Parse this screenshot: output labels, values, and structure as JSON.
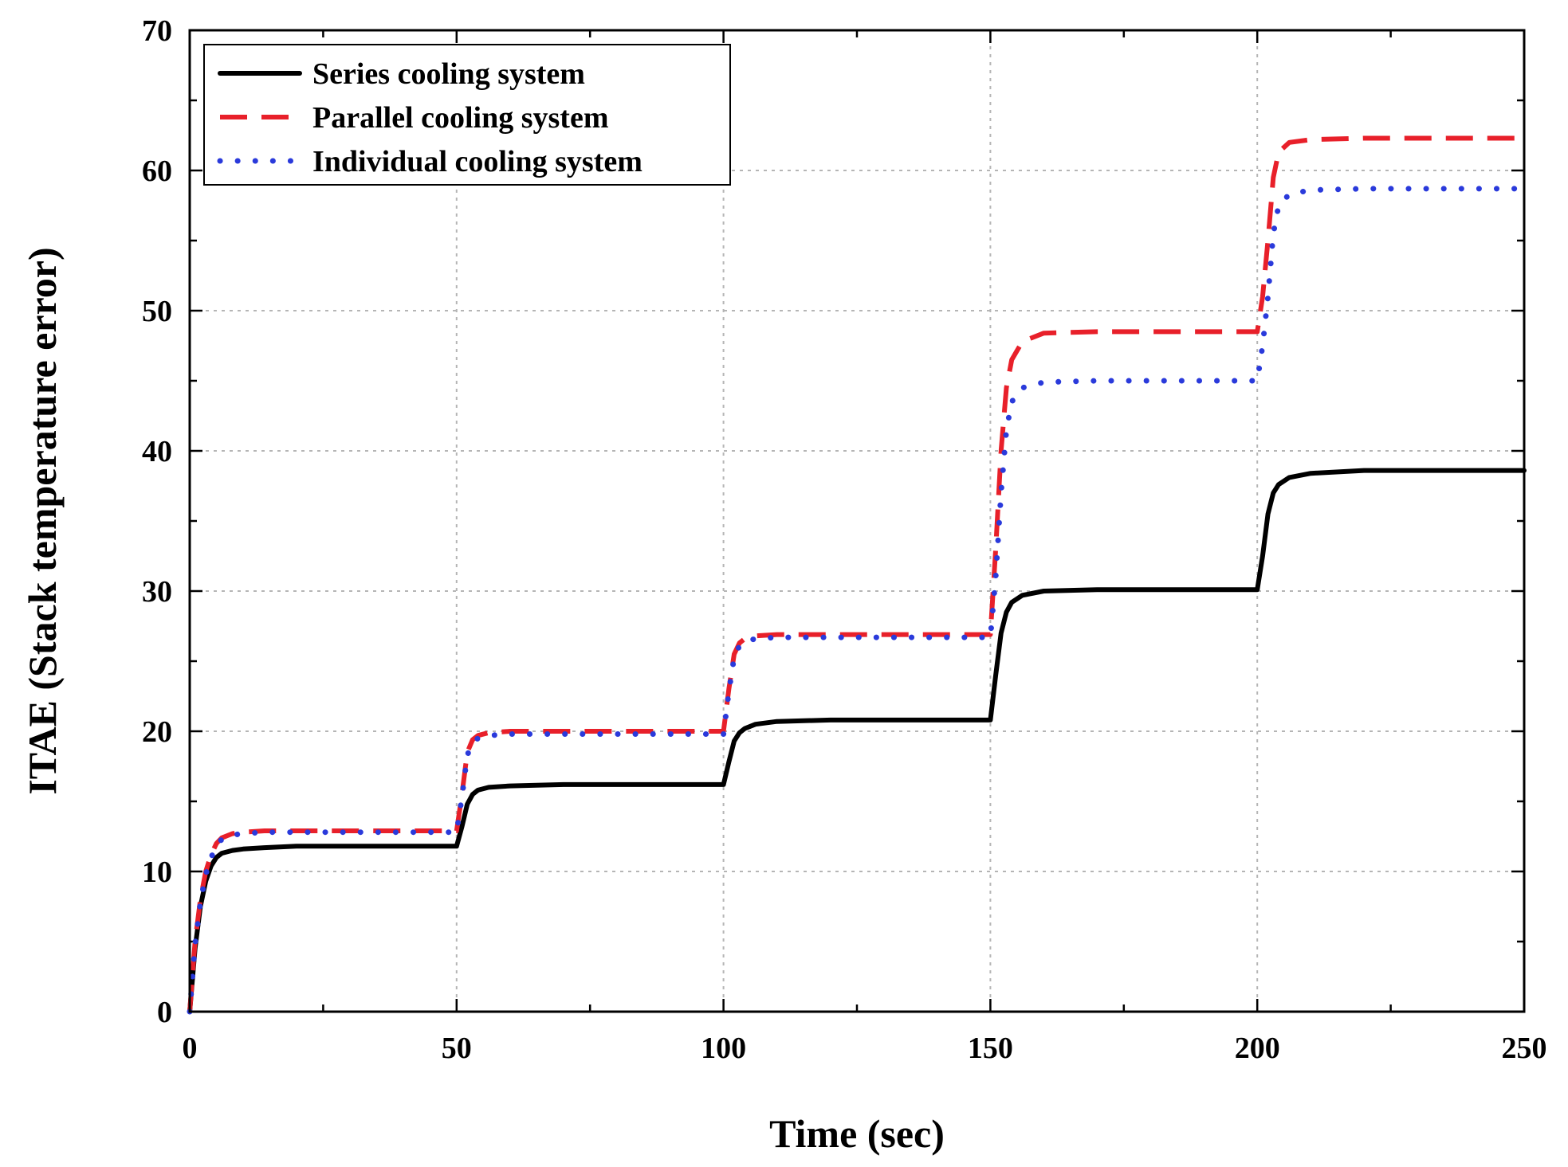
{
  "chart_data": {
    "type": "line",
    "title": "",
    "xlabel": "Time (sec)",
    "ylabel": "ITAE (Stack temperature error)",
    "xlim": [
      0,
      250
    ],
    "ylim": [
      0,
      70
    ],
    "xticks": [
      0,
      50,
      100,
      150,
      200,
      250
    ],
    "yticks": [
      0,
      10,
      20,
      30,
      40,
      50,
      60,
      70
    ],
    "grid": true,
    "legend_position": "top-left",
    "series": [
      {
        "name": "Series cooling system",
        "style": "solid",
        "color": "#000000",
        "x": [
          0,
          1,
          2,
          3,
          4,
          5,
          6,
          8,
          10,
          14,
          20,
          30,
          40,
          50,
          51,
          52,
          53,
          54,
          56,
          60,
          70,
          80,
          90,
          100,
          101,
          102,
          103,
          104,
          106,
          110,
          120,
          130,
          140,
          150,
          151,
          152,
          153,
          154,
          156,
          160,
          170,
          180,
          190,
          200,
          201,
          202,
          203,
          204,
          206,
          210,
          220,
          230,
          240,
          250
        ],
        "y": [
          0,
          4.5,
          7.5,
          9.3,
          10.4,
          11.0,
          11.3,
          11.5,
          11.6,
          11.7,
          11.8,
          11.8,
          11.8,
          11.8,
          13.2,
          14.8,
          15.5,
          15.8,
          16.0,
          16.1,
          16.2,
          16.2,
          16.2,
          16.2,
          17.8,
          19.3,
          19.9,
          20.2,
          20.5,
          20.7,
          20.8,
          20.8,
          20.8,
          20.8,
          24.0,
          27.0,
          28.5,
          29.2,
          29.7,
          30.0,
          30.1,
          30.1,
          30.1,
          30.1,
          32.5,
          35.5,
          37.0,
          37.6,
          38.1,
          38.4,
          38.6,
          38.6,
          38.6,
          38.6
        ]
      },
      {
        "name": "Parallel cooling system",
        "style": "dashed",
        "color": "#e8202a",
        "x": [
          0,
          1,
          2,
          3,
          4,
          5,
          6,
          8,
          10,
          14,
          20,
          30,
          40,
          50,
          51,
          52,
          53,
          54,
          56,
          60,
          70,
          80,
          90,
          100,
          101,
          102,
          103,
          104,
          106,
          110,
          120,
          130,
          140,
          150,
          151,
          152,
          153,
          154,
          156,
          160,
          170,
          180,
          190,
          200,
          201,
          202,
          203,
          204,
          206,
          210,
          220,
          230,
          240,
          250
        ],
        "y": [
          0,
          5.0,
          8.0,
          10.0,
          11.2,
          12.0,
          12.4,
          12.7,
          12.8,
          12.9,
          12.9,
          12.9,
          12.9,
          12.9,
          15.5,
          18.5,
          19.4,
          19.7,
          19.9,
          20.0,
          20.0,
          20.0,
          20.0,
          20.0,
          23.0,
          25.5,
          26.3,
          26.6,
          26.8,
          26.9,
          26.9,
          26.9,
          26.9,
          26.9,
          33.0,
          40.0,
          44.5,
          46.5,
          47.8,
          48.4,
          48.5,
          48.5,
          48.5,
          48.5,
          51.0,
          55.0,
          59.5,
          61.3,
          62.0,
          62.2,
          62.3,
          62.3,
          62.3,
          62.3
        ]
      },
      {
        "name": "Individual cooling system",
        "style": "dotted",
        "color": "#2a3adb",
        "x": [
          0,
          1,
          2,
          3,
          4,
          5,
          6,
          8,
          10,
          14,
          20,
          30,
          40,
          50,
          51,
          52,
          53,
          54,
          56,
          60,
          70,
          80,
          90,
          100,
          101,
          102,
          103,
          104,
          106,
          110,
          120,
          130,
          140,
          150,
          151,
          152,
          153,
          154,
          156,
          160,
          170,
          180,
          190,
          200,
          201,
          202,
          203,
          204,
          206,
          210,
          220,
          230,
          240,
          250
        ],
        "y": [
          0,
          4.8,
          7.8,
          9.8,
          11.0,
          11.8,
          12.3,
          12.6,
          12.7,
          12.8,
          12.8,
          12.8,
          12.8,
          12.8,
          15.3,
          18.3,
          19.2,
          19.5,
          19.7,
          19.8,
          19.8,
          19.8,
          19.8,
          19.8,
          22.8,
          25.3,
          26.1,
          26.4,
          26.6,
          26.7,
          26.7,
          26.7,
          26.7,
          26.7,
          31.0,
          37.0,
          41.5,
          43.5,
          44.5,
          44.9,
          45.0,
          45.0,
          45.0,
          45.0,
          47.5,
          51.0,
          55.5,
          57.5,
          58.3,
          58.6,
          58.7,
          58.7,
          58.7,
          58.7
        ]
      }
    ]
  }
}
